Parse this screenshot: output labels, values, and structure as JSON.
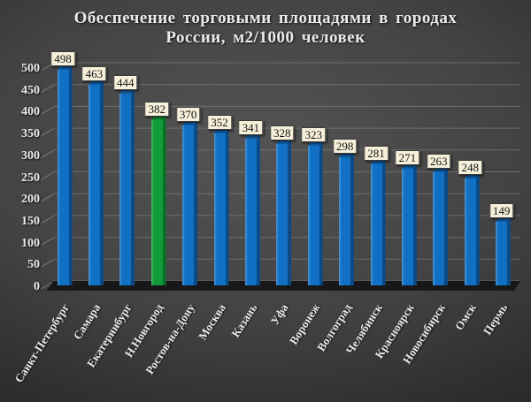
{
  "chart_data": {
    "type": "bar",
    "title": "Обеспечение торговыми площадями в городах России, м2/1000 человек",
    "title_lines": [
      "Обеспечение торговыми  площадями  в городах",
      "России, м2/1000 человек"
    ],
    "categories": [
      "Санкт-Петербург",
      "Самара",
      "Екатеринбург",
      "Н.Новгород",
      "Ростов-на-Дону",
      "Москва",
      "Казань",
      "Уфа",
      "Воронеж",
      "Волгоград",
      "Челябинск",
      "Красноярск",
      "Новосибирск",
      "Омск",
      "Пермь"
    ],
    "values": [
      498,
      463,
      444,
      382,
      370,
      352,
      341,
      328,
      323,
      298,
      281,
      271,
      263,
      248,
      149
    ],
    "highlight_category": "Н.Новгород",
    "highlight_index": 3,
    "xlabel": "",
    "ylabel": "",
    "ylim": [
      0,
      500
    ],
    "ytick_step": 50,
    "grid": true,
    "legend": false,
    "colors": {
      "bar_front": "#1070c4",
      "bar_side": "#0a4a88",
      "bar_top": "#0d5ca3",
      "highlight_front": "#0f9c38",
      "highlight_side": "#0a6f26",
      "highlight_top": "#0d8c30",
      "value_box_bg": "#f6f0da",
      "value_box_border": "#3a3a3a",
      "text": "#ebebeb",
      "gridline": "#8a8a8a",
      "floor": "#181818"
    }
  }
}
